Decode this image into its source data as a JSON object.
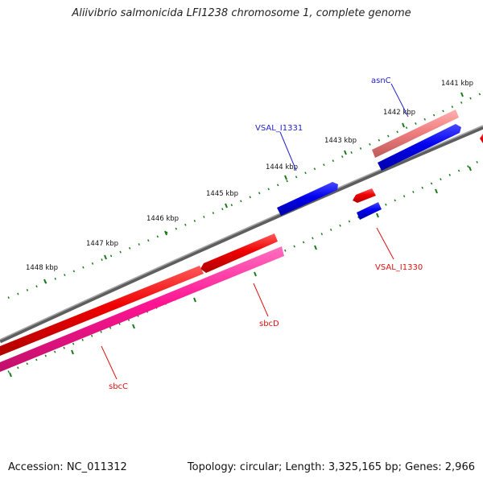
{
  "title": "Aliivibrio salmonicida LFI1238 chromosome 1, complete genome",
  "accession": "Accession: NC_011312",
  "summary": "Topology: circular; Length: 3,325,165 bp; Genes: 2,966",
  "kbp_labels": [
    "1441 kbp",
    "1442 kbp",
    "1443 kbp",
    "1444 kbp",
    "1445 kbp",
    "1446 kbp",
    "1447 kbp",
    "1448 kbp"
  ],
  "genes": [
    {
      "name": "asnC",
      "strand": "forward",
      "color": "#2222cc"
    },
    {
      "name": "VSAL_I1331",
      "strand": "forward",
      "color": "#2222cc"
    },
    {
      "name": "VSAL_I1330",
      "strand": "reverse",
      "color": "#dd1111"
    },
    {
      "name": "sbcD",
      "strand": "reverse",
      "color": "#dd1111"
    },
    {
      "name": "sbcC",
      "strand": "reverse",
      "color": "#dd1111"
    }
  ],
  "colors": {
    "backbone": "#808080",
    "tick": "#1a7a1a",
    "forward_cds": "#0000ee",
    "reverse_cds": "#ee0000",
    "gene_forward": "#f08080",
    "gene_reverse": "#ff1493"
  }
}
